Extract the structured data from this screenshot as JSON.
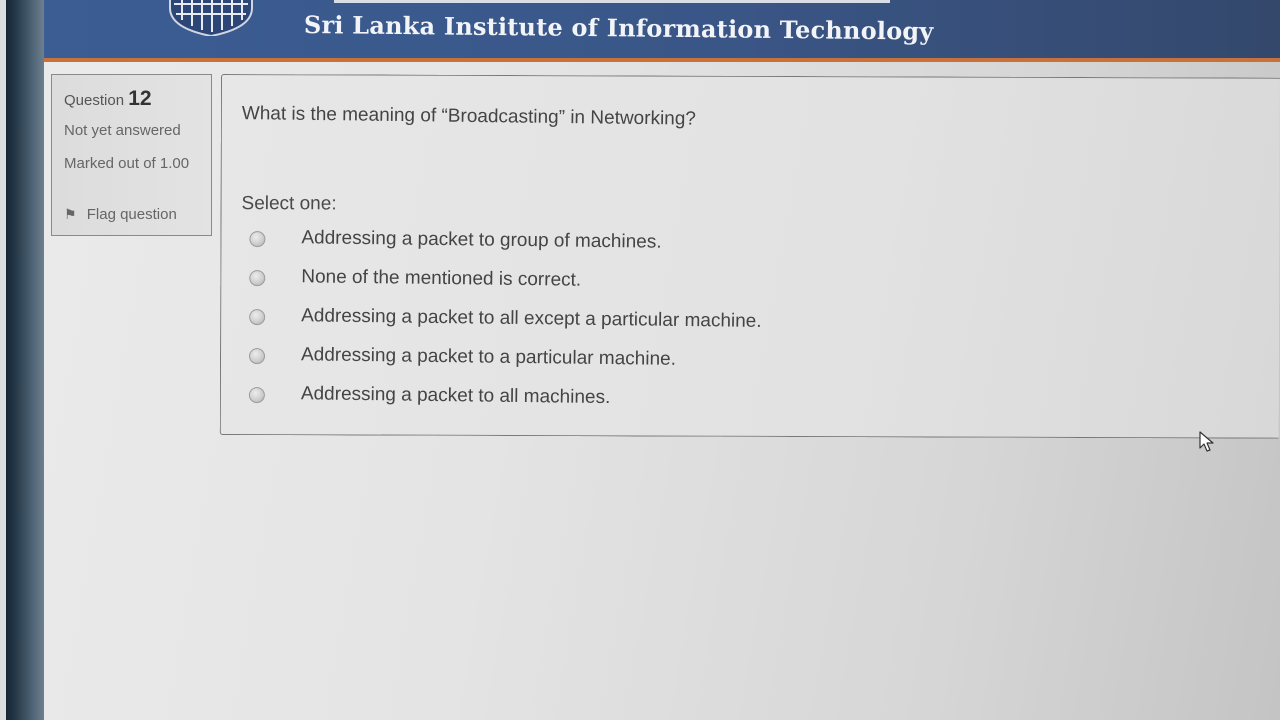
{
  "header": {
    "title": "Sri Lanka Institute of Information Technology",
    "logo_icon": "crest-logo-icon"
  },
  "info": {
    "question_label": "Question",
    "question_number": "12",
    "state": "Not yet answered",
    "marked_out_of": "Marked out of 1.00",
    "flag_label": "Flag question",
    "flag_icon": "flag-icon"
  },
  "question": {
    "text": "What is the meaning of “Broadcasting” in Networking?",
    "prompt": "Select one:",
    "options": [
      {
        "label": "Addressing a packet to group of machines."
      },
      {
        "label": "None of the mentioned is correct."
      },
      {
        "label": "Addressing a packet to all except a particular machine."
      },
      {
        "label": "Addressing a packet to a particular machine."
      },
      {
        "label": "Addressing a packet to all machines."
      }
    ]
  },
  "colors": {
    "header_bg": "#3b5d94",
    "header_accent": "#c8713a",
    "text": "#444444"
  }
}
